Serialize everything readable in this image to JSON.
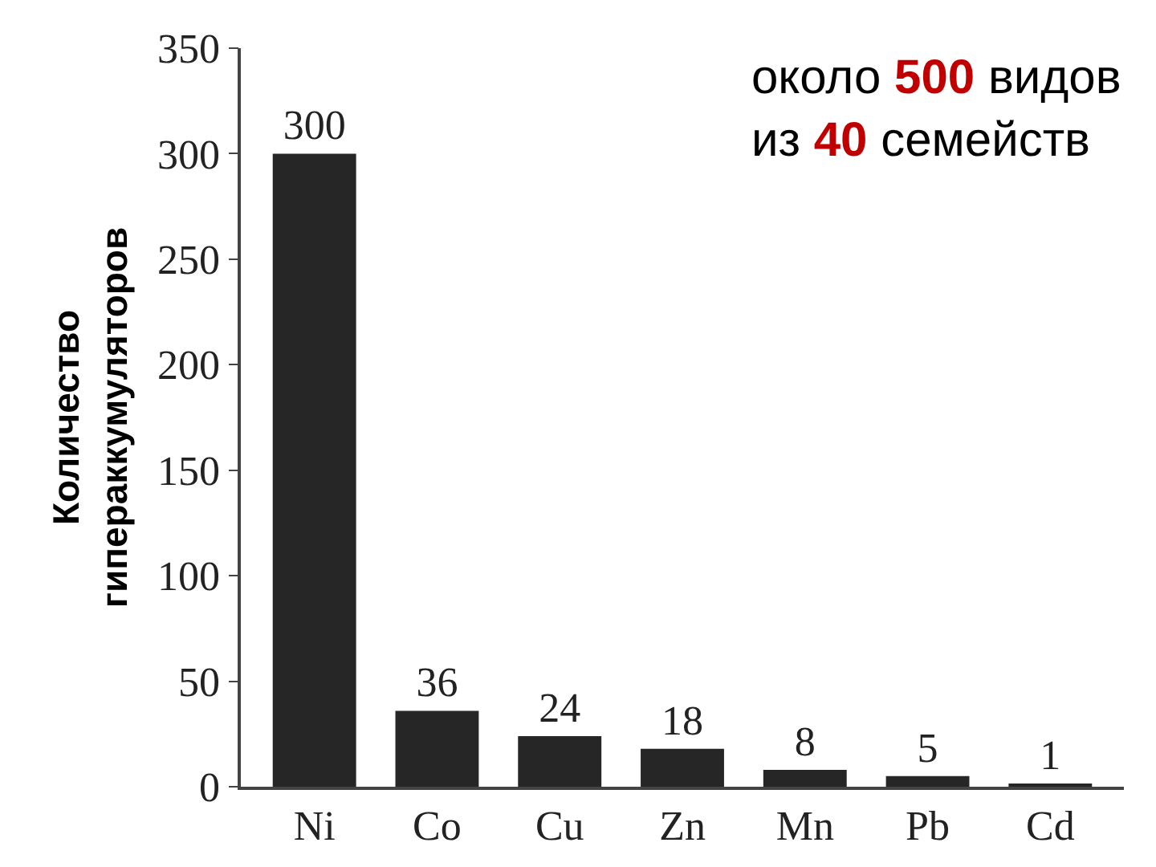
{
  "chart_data": {
    "type": "bar",
    "ylabel": "Количество\nгипераккумуляторов",
    "categories": [
      "Ni",
      "Co",
      "Cu",
      "Zn",
      "Mn",
      "Pb",
      "Cd"
    ],
    "values": [
      300,
      36,
      24,
      18,
      8,
      5,
      1
    ],
    "color": "#262626",
    "ylim": [
      0,
      350
    ],
    "yticks": [
      0,
      50,
      100,
      150,
      200,
      250,
      300,
      350
    ],
    "data_labels": true,
    "annotations": [
      "около 500 видов\nиз 40 семейств"
    ]
  }
}
